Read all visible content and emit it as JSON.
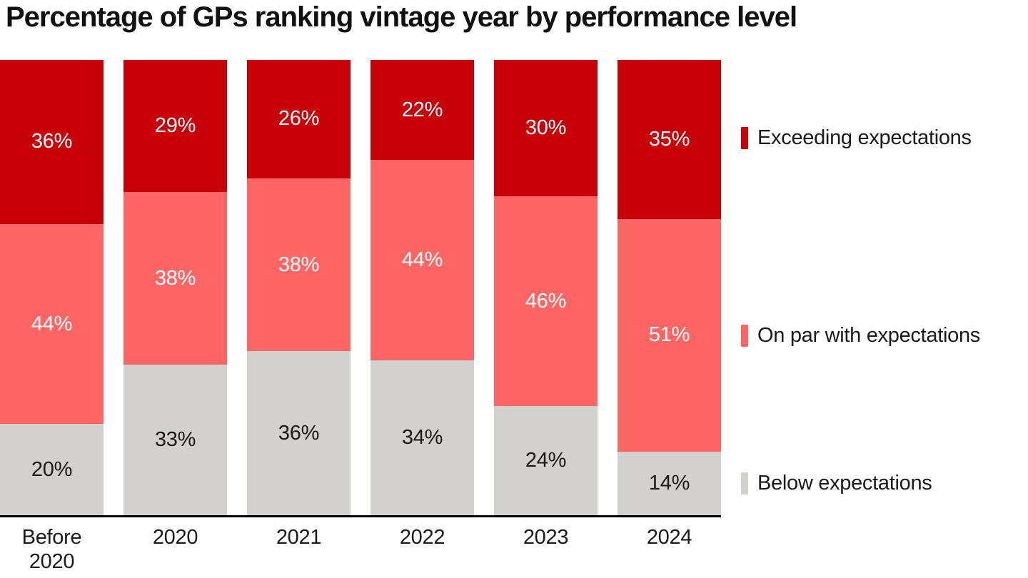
{
  "title": "Percentage of GPs ranking vintage year by performance level",
  "colors": {
    "exceeding": "#c80008",
    "on_par": "#fe6665",
    "below": "#d2d1ce",
    "axis": "#000000",
    "label_on_red": "#ffffff",
    "label_on_gray": "#1a1a1a",
    "background": "#ffffff"
  },
  "chart_data": {
    "type": "bar",
    "stacked": true,
    "orientation": "vertical",
    "title": "Percentage of GPs ranking vintage year by performance level",
    "categories": [
      "Before 2020",
      "2020",
      "2021",
      "2022",
      "2023",
      "2024"
    ],
    "series": [
      {
        "name": "Exceeding expectations",
        "values": [
          36,
          29,
          26,
          22,
          30,
          35
        ],
        "color": "#c80008",
        "label_color": "#ffffff"
      },
      {
        "name": "On par with expectations",
        "values": [
          44,
          38,
          38,
          44,
          46,
          51
        ],
        "color": "#fe6665",
        "label_color": "#ffffff"
      },
      {
        "name": "Below expectations",
        "values": [
          20,
          33,
          36,
          34,
          24,
          14
        ],
        "color": "#d2d1ce",
        "label_color": "#1a1a1a"
      }
    ],
    "value_suffix": "%",
    "xlabel": "",
    "ylabel": "",
    "ylim": [
      0,
      100
    ],
    "grid": false,
    "legend_position": "right"
  }
}
